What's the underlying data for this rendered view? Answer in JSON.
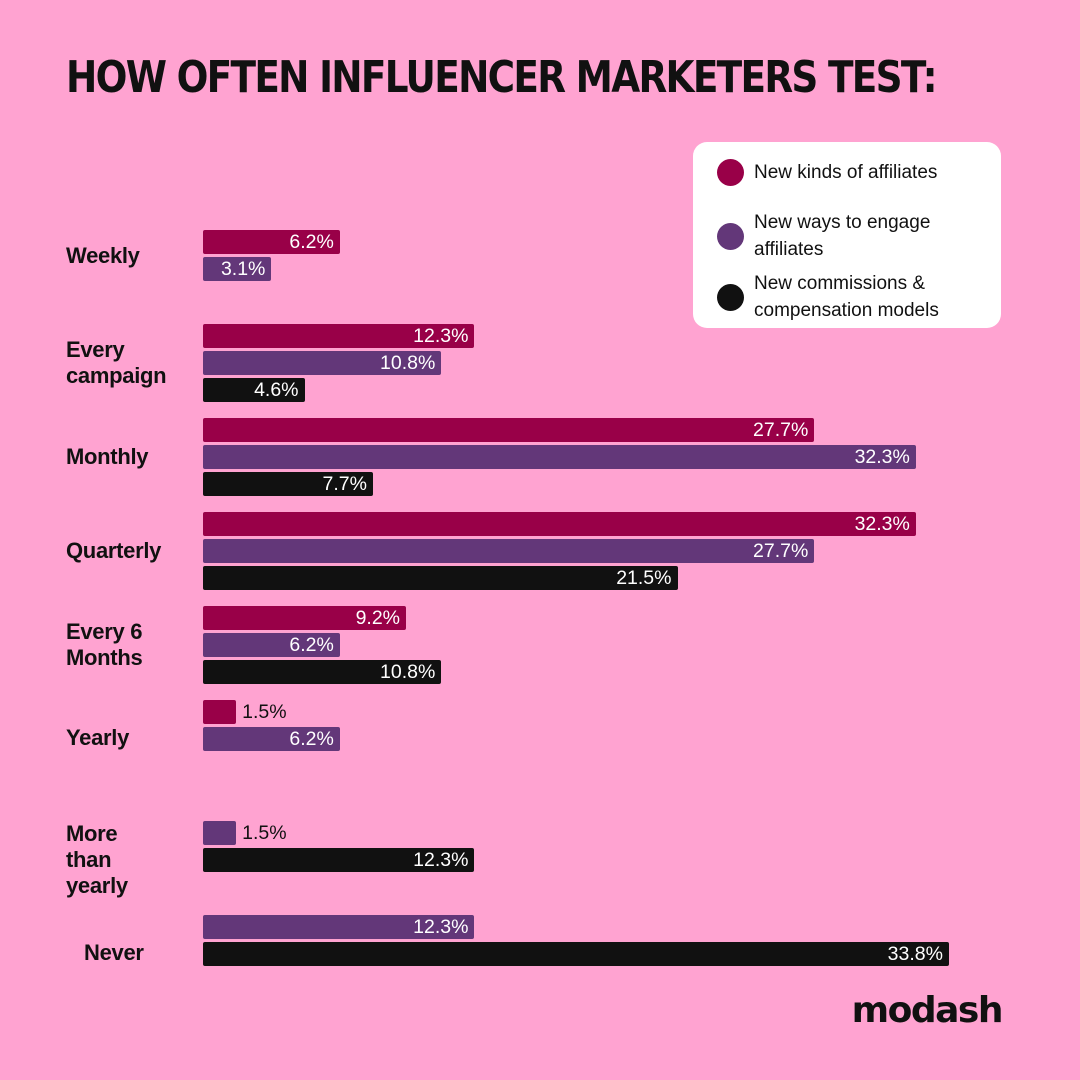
{
  "colors": {
    "background": "#ffa3d1",
    "series": [
      "#990048",
      "#633779",
      "#111111"
    ],
    "label_on_bar": "#ffffff",
    "label_outside": "#111111"
  },
  "title": "HOW OFTEN INFLUENCER MARKETERS TEST:",
  "brand": "modash",
  "legend": [
    {
      "label": "New kinds of affiliates"
    },
    {
      "label": "New ways to engage affiliates"
    },
    {
      "label": "New commissions & compensation models"
    }
  ],
  "chart_data": {
    "type": "bar",
    "orientation": "horizontal",
    "title": "HOW OFTEN INFLUENCER MARKETERS TEST:",
    "categories": [
      "Weekly",
      "Every campaign",
      "Monthly",
      "Quarterly",
      "Every 6 Months",
      "Yearly",
      "More than yearly",
      "Never"
    ],
    "series": [
      {
        "name": "New kinds of affiliates",
        "values": [
          6.2,
          12.3,
          27.7,
          32.3,
          9.2,
          1.5,
          null,
          null
        ]
      },
      {
        "name": "New ways to engage affiliates",
        "values": [
          3.1,
          10.8,
          32.3,
          27.7,
          6.2,
          6.2,
          1.5,
          12.3
        ]
      },
      {
        "name": "New commissions & compensation models",
        "values": [
          null,
          4.6,
          7.7,
          21.5,
          10.8,
          null,
          12.3,
          33.8
        ]
      }
    ],
    "value_format": "{v}%",
    "legend_position": "top-right"
  }
}
